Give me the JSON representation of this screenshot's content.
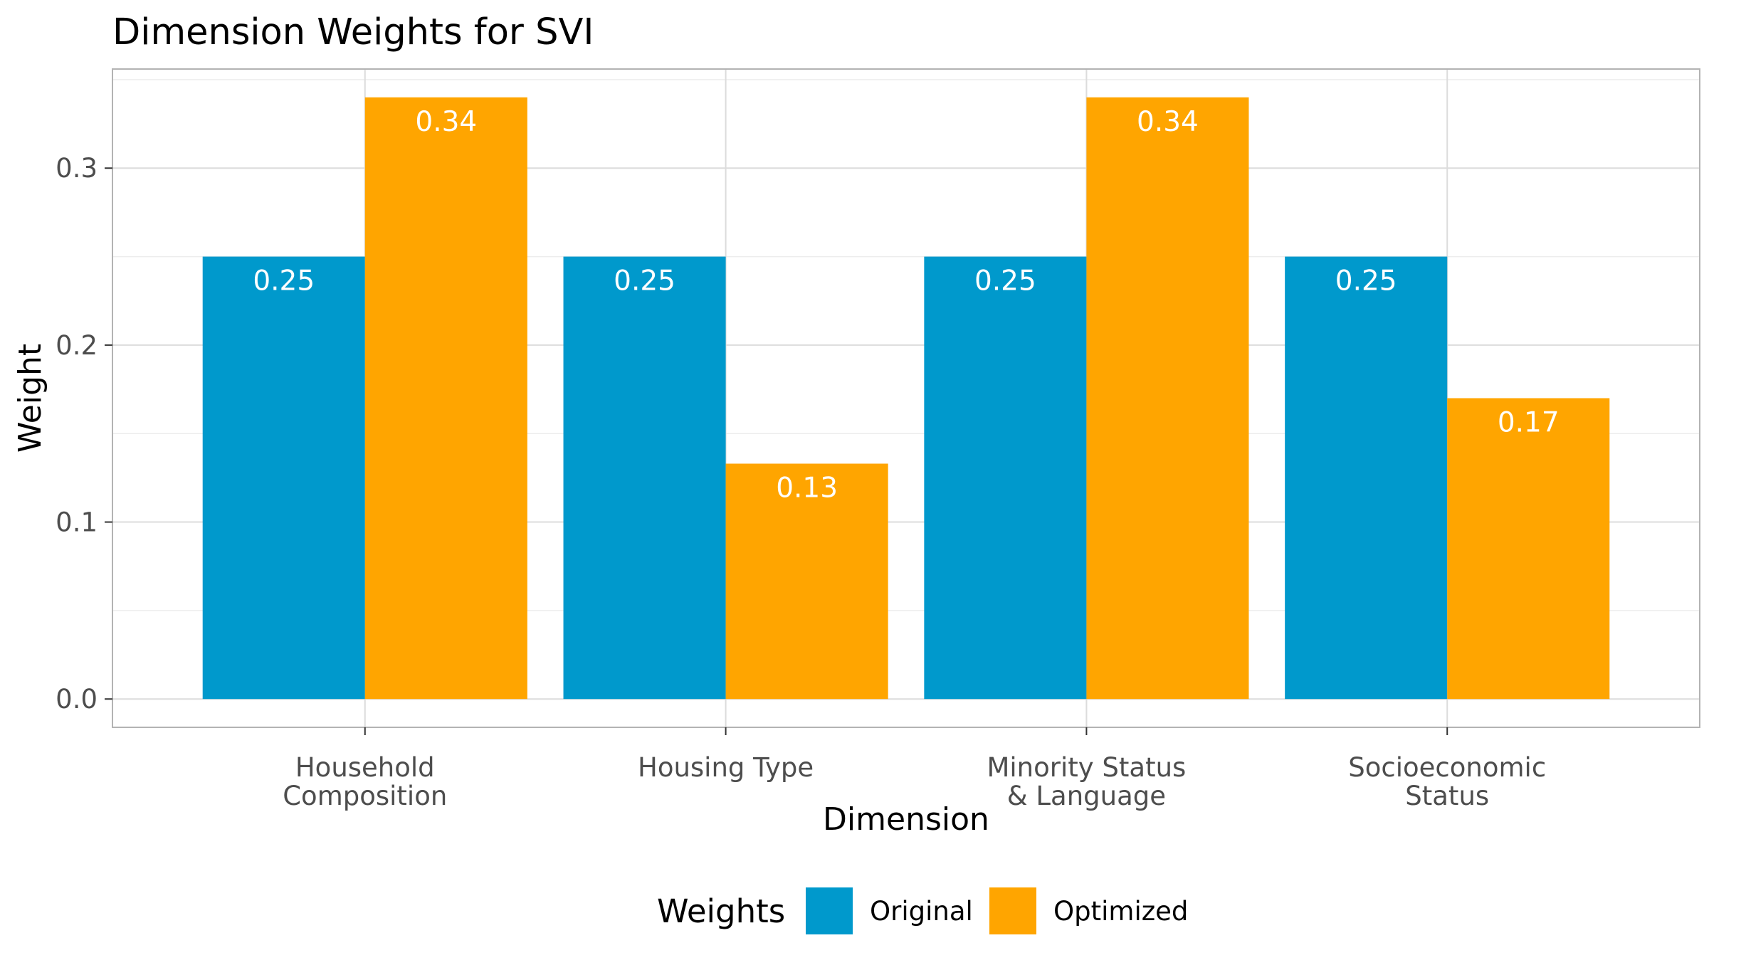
{
  "chart_data": {
    "type": "bar",
    "title": "Dimension Weights for SVI",
    "xlabel": "Dimension",
    "ylabel": "Weight",
    "categories": [
      [
        "Household",
        "Composition"
      ],
      [
        "Housing Type"
      ],
      [
        "Minority Status",
        "& Language"
      ],
      [
        "Socioeconomic",
        "Status"
      ]
    ],
    "series": [
      {
        "name": "Original",
        "color": "#0099CC",
        "values": [
          0.25,
          0.25,
          0.25,
          0.25
        ],
        "labels": [
          "0.25",
          "0.25",
          "0.25",
          "0.25"
        ]
      },
      {
        "name": "Optimized",
        "color": "#FFA500",
        "values": [
          0.34,
          0.133,
          0.34,
          0.17
        ],
        "labels": [
          "0.34",
          "0.13",
          "0.34",
          "0.17"
        ]
      }
    ],
    "ylim": [
      -0.016,
      0.356
    ],
    "yticks": [
      0.0,
      0.1,
      0.2,
      0.3
    ],
    "ytick_labels": [
      "0.0",
      "0.1",
      "0.2",
      "0.3"
    ],
    "grid": true,
    "legend": {
      "title": "Weights",
      "position": "bottom"
    }
  }
}
